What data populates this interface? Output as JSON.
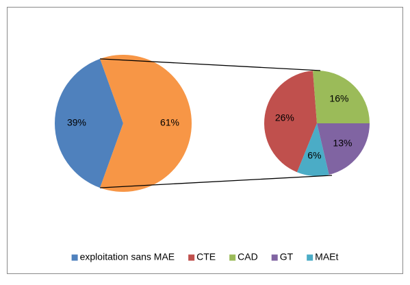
{
  "chart_data": {
    "type": "pie",
    "categories": [
      "exploitation sans MAE",
      null
    ],
    "values": [
      39,
      61
    ],
    "value_labels": [
      "39%",
      "61%"
    ],
    "colors": [
      "#4f81bd",
      "#f79646"
    ],
    "secondary": {
      "categories": [
        "CTE",
        "CAD",
        "GT",
        "MAEt"
      ],
      "values": [
        26,
        16,
        13,
        6
      ],
      "value_labels": [
        "26%",
        "16%",
        "13%",
        "6%"
      ],
      "colors": [
        "#c0504d",
        "#9bbb59",
        "#8064a2",
        "#4bacc6"
      ]
    },
    "legend": "bottom"
  }
}
